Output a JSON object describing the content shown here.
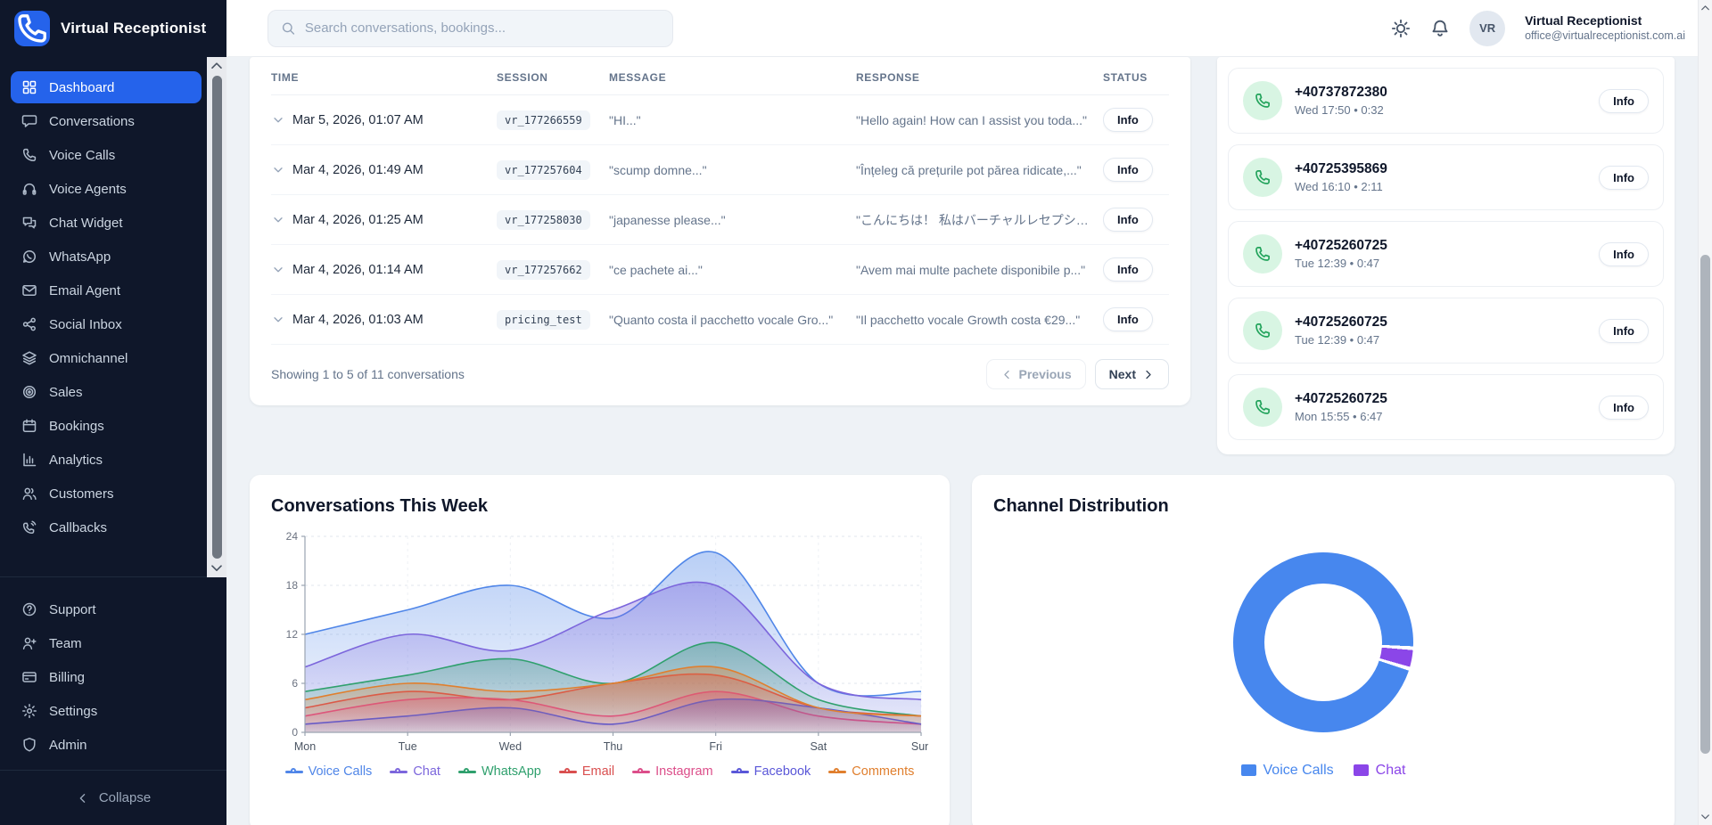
{
  "app": {
    "title": "Virtual Receptionist"
  },
  "header": {
    "search_placeholder": "Search conversations, bookings...",
    "user": {
      "initials": "VR",
      "name": "Virtual Receptionist",
      "email": "office@virtualreceptionist.com.ai"
    }
  },
  "sidebar": {
    "items": [
      {
        "label": "Dashboard",
        "icon": "dashboard-icon",
        "active": true
      },
      {
        "label": "Conversations",
        "icon": "chat-icon",
        "active": false
      },
      {
        "label": "Voice Calls",
        "icon": "phone-icon",
        "active": false
      },
      {
        "label": "Voice Agents",
        "icon": "headset-icon",
        "active": false
      },
      {
        "label": "Chat Widget",
        "icon": "chat-widget-icon",
        "active": false
      },
      {
        "label": "WhatsApp",
        "icon": "whatsapp-icon",
        "active": false
      },
      {
        "label": "Email Agent",
        "icon": "mail-icon",
        "active": false
      },
      {
        "label": "Social Inbox",
        "icon": "share-icon",
        "active": false
      },
      {
        "label": "Omnichannel",
        "icon": "layers-icon",
        "active": false
      },
      {
        "label": "Sales",
        "icon": "target-icon",
        "active": false
      },
      {
        "label": "Bookings",
        "icon": "calendar-icon",
        "active": false
      },
      {
        "label": "Analytics",
        "icon": "bar-chart-icon",
        "active": false
      },
      {
        "label": "Customers",
        "icon": "users-icon",
        "active": false
      },
      {
        "label": "Callbacks",
        "icon": "phone-callback-icon",
        "active": false
      }
    ],
    "secondary": [
      {
        "label": "Support",
        "icon": "help-icon"
      },
      {
        "label": "Team",
        "icon": "user-plus-icon"
      },
      {
        "label": "Billing",
        "icon": "credit-card-icon"
      },
      {
        "label": "Settings",
        "icon": "gear-icon"
      },
      {
        "label": "Admin",
        "icon": "shield-icon"
      }
    ],
    "collapse_label": "Collapse"
  },
  "conversations_table": {
    "columns": [
      "TIME",
      "SESSION",
      "MESSAGE",
      "RESPONSE",
      "STATUS"
    ],
    "rows": [
      {
        "time": "Mar 5, 2026, 01:07 AM",
        "session": "vr_177266559",
        "message": "\"HI...\"",
        "response": "\"Hello again! How can I assist you toda...\"",
        "status": "Info"
      },
      {
        "time": "Mar 4, 2026, 01:49 AM",
        "session": "vr_177257604",
        "message": "\"scump domne...\"",
        "response": "\"Înțeleg că prețurile pot părea ridicate,...\"",
        "status": "Info"
      },
      {
        "time": "Mar 4, 2026, 01:25 AM",
        "session": "vr_177258030",
        "message": "\"japanesse please...\"",
        "response": "\"こんにちは！ 私はバーチャルレセプショ...\"",
        "status": "Info"
      },
      {
        "time": "Mar 4, 2026, 01:14 AM",
        "session": "vr_177257662",
        "message": "\"ce pachete ai...\"",
        "response": "\"Avem mai multe pachete disponibile p...\"",
        "status": "Info"
      },
      {
        "time": "Mar 4, 2026, 01:03 AM",
        "session": "pricing_test",
        "message": "\"Quanto costa il pacchetto vocale Gro...\"",
        "response": "\"Il pacchetto vocale Growth costa €29...\"",
        "status": "Info"
      }
    ],
    "footer": {
      "showing": "Showing 1 to 5 of 11 conversations",
      "previous_label": "Previous",
      "next_label": "Next"
    }
  },
  "calls_panel": {
    "items": [
      {
        "number": "+40737872380",
        "meta": "Wed 17:50 • 0:32",
        "action": "Info"
      },
      {
        "number": "+40725395869",
        "meta": "Wed 16:10 • 2:11",
        "action": "Info"
      },
      {
        "number": "+40725260725",
        "meta": "Tue 12:39 • 0:47",
        "action": "Info"
      },
      {
        "number": "+40725260725",
        "meta": "Tue 12:39 • 0:47",
        "action": "Info"
      },
      {
        "number": "+40725260725",
        "meta": "Mon 15:55 • 6:47",
        "action": "Info"
      }
    ]
  },
  "charts": {
    "week_title": "Conversations This Week",
    "channel_title": "Channel Distribution"
  },
  "chart_data": [
    {
      "type": "area",
      "title": "Conversations This Week",
      "x": [
        "Mon",
        "Tue",
        "Wed",
        "Thu",
        "Fri",
        "Sat",
        "Sun"
      ],
      "ylim": [
        0,
        24
      ],
      "yticks": [
        0,
        6,
        12,
        18,
        24
      ],
      "grid": true,
      "legend_position": "bottom",
      "series": [
        {
          "name": "Voice Calls",
          "color": "#5086e8",
          "values": [
            12,
            15,
            18,
            14,
            22,
            6,
            5
          ]
        },
        {
          "name": "Chat",
          "color": "#7c66dc",
          "values": [
            8,
            12,
            10,
            15,
            18,
            6,
            4
          ]
        },
        {
          "name": "WhatsApp",
          "color": "#2fa06d",
          "values": [
            5,
            7,
            9,
            6,
            11,
            4,
            2
          ]
        },
        {
          "name": "Email",
          "color": "#d94f4f",
          "values": [
            3,
            5,
            4,
            6,
            7,
            3,
            2
          ]
        },
        {
          "name": "Instagram",
          "color": "#dc4e8a",
          "values": [
            2,
            4,
            4,
            2,
            5,
            2,
            1
          ]
        },
        {
          "name": "Facebook",
          "color": "#5a57d8",
          "values": [
            1,
            2,
            3,
            1,
            4,
            3,
            1
          ]
        },
        {
          "name": "Comments",
          "color": "#e07f2e",
          "values": [
            4,
            6,
            5,
            6,
            8,
            3,
            2
          ]
        }
      ]
    },
    {
      "type": "pie",
      "title": "Channel Distribution",
      "donut": true,
      "labels": [
        "Voice Calls",
        "Chat"
      ],
      "values": [
        97,
        3
      ],
      "colors": [
        "#4787ee",
        "#8b46e8"
      ],
      "legend_position": "bottom"
    }
  ],
  "colors": {
    "sidebar_bg": "#0f172a",
    "accent": "#2563eb",
    "page_bg": "#eef2f6",
    "call_icon_green": "#22a35b"
  }
}
